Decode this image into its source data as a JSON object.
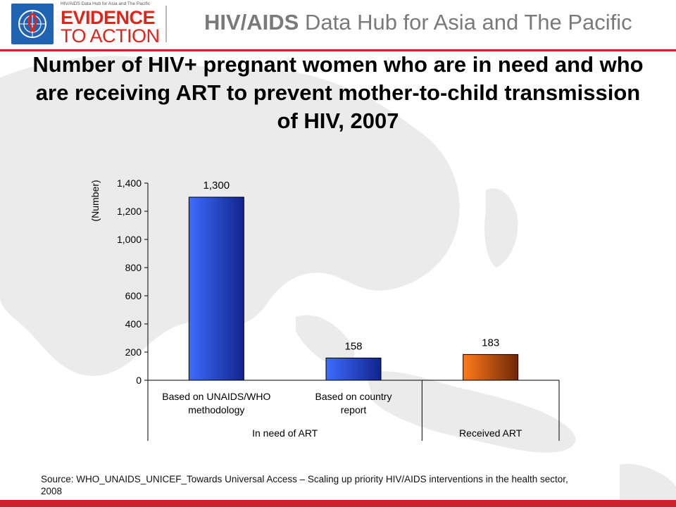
{
  "header": {
    "logo_tagline": "HIV/AIDS Data Hub for Asia and The Pacific",
    "logo_word1": "EVIDENCE",
    "logo_word2": "TO ACTION",
    "title_bold": "HIV/AIDS",
    "title_rest": " Data Hub for Asia and The Pacific"
  },
  "slide": {
    "title": "Number of HIV+ pregnant women who are in need and who are receiving ART to prevent mother-to-child transmission of HIV, 2007",
    "source": "Source: WHO_UNAIDS_UNICEF_Towards Universal Access – Scaling up priority HIV/AIDS interventions in the health sector, 2008"
  },
  "colors": {
    "brand_red": "#cc2229",
    "bar_blue_light": "#3d6cff",
    "bar_blue_dark": "#12248c",
    "bar_orange_light": "#ff7a1a",
    "bar_orange_dark": "#6e2708"
  },
  "chart_data": {
    "type": "bar",
    "title": "",
    "ylabel": "(Number)",
    "xlabel": "",
    "ylim": [
      0,
      1400
    ],
    "yticks": [
      "0",
      "200",
      "400",
      "600",
      "800",
      "1,000",
      "1,200",
      "1,400"
    ],
    "ytick_values": [
      0,
      200,
      400,
      600,
      800,
      1000,
      1200,
      1400
    ],
    "categories": [
      "Based on UNAIDS/WHO methodology",
      "Based on country report",
      ""
    ],
    "values": [
      1300,
      158,
      183
    ],
    "data_labels": [
      "1,300",
      "158",
      "183"
    ],
    "groups": [
      {
        "label": "In need of ART",
        "categories": [
          0,
          1
        ]
      },
      {
        "label": "Received ART",
        "categories": [
          2
        ]
      }
    ],
    "bar_colors": [
      "blue",
      "blue",
      "orange"
    ],
    "grid": false,
    "legend": "none"
  }
}
